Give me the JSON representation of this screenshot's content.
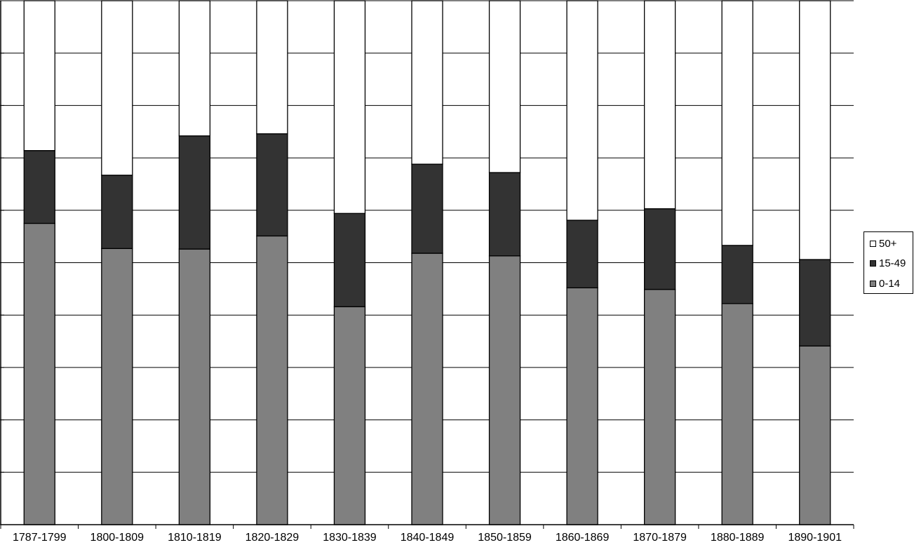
{
  "chart_data": {
    "type": "bar",
    "stacked": true,
    "normalized": true,
    "title": "",
    "xlabel": "",
    "ylabel": "",
    "ylim": [
      0,
      100
    ],
    "grid": true,
    "legend_position": "right",
    "categories": [
      "1787-1799",
      "1800-1809",
      "1810-1819",
      "1820-1829",
      "1830-1839",
      "1840-1849",
      "1850-1859",
      "1860-1869",
      "1870-1879",
      "1880-1889",
      "1890-1901"
    ],
    "series": [
      {
        "name": "0-14",
        "color": "#808080",
        "values": [
          57.5,
          52.7,
          52.6,
          55.1,
          41.6,
          51.8,
          51.3,
          45.2,
          44.9,
          42.2,
          34.1
        ]
      },
      {
        "name": "15-49",
        "color": "#333333",
        "values": [
          13.9,
          14.0,
          21.6,
          19.5,
          17.8,
          17.0,
          15.9,
          12.9,
          15.4,
          11.1,
          16.5
        ]
      },
      {
        "name": "50+",
        "color": "#ffffff",
        "values": [
          28.6,
          33.3,
          25.8,
          25.4,
          40.6,
          31.2,
          32.8,
          41.9,
          39.7,
          46.7,
          49.4
        ]
      }
    ],
    "legend_order": [
      "50+",
      "15-49",
      "0-14"
    ]
  }
}
